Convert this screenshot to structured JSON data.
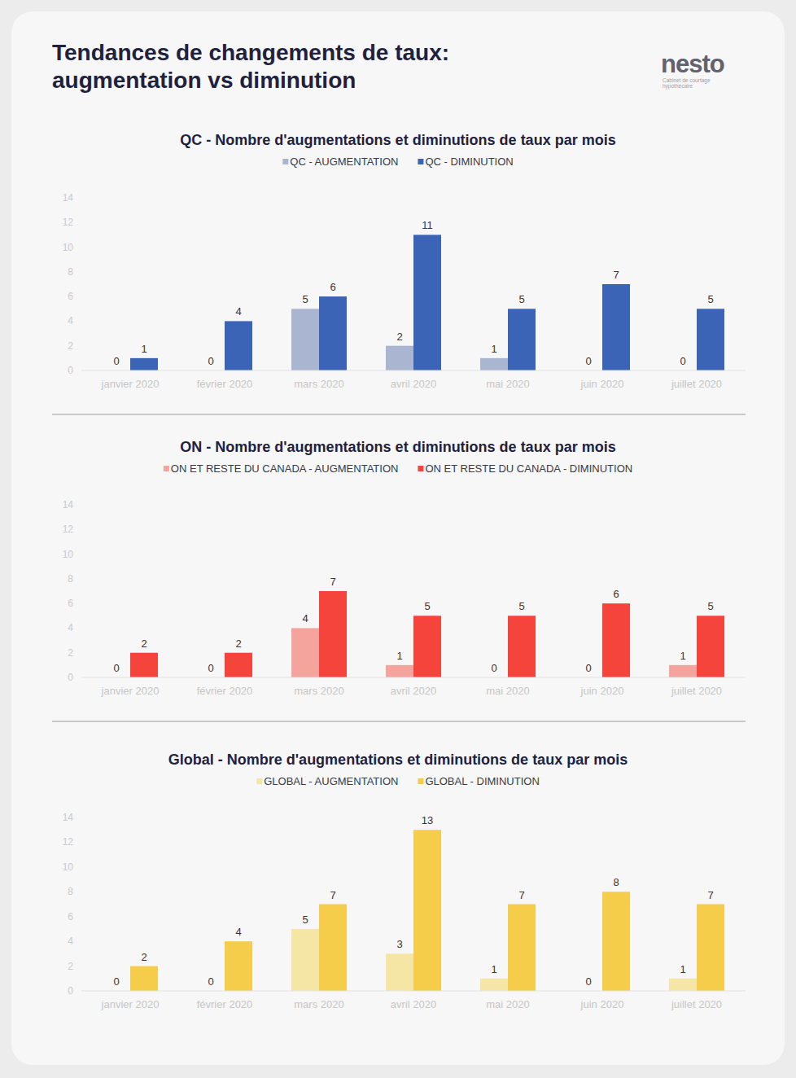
{
  "header": {
    "title": [
      "Tendances de changements de taux:",
      "augmentation vs diminution"
    ],
    "logo": "nesto",
    "logo_subtitle": [
      "Cabinet de courtage",
      "hypothécaire"
    ]
  },
  "chart_data": [
    {
      "type": "bar",
      "title": "QC - Nombre d'augmentations et diminutions de taux par mois",
      "categories": [
        "janvier 2020",
        "février 2020",
        "mars 2020",
        "avril 2020",
        "mai 2020",
        "juin 2020",
        "juillet 2020"
      ],
      "series": [
        {
          "name": "QC -  AUGMENTATION",
          "color": "#a9b5d1",
          "values": [
            0,
            0,
            5,
            2,
            1,
            0,
            0
          ]
        },
        {
          "name": "QC -  DIMINUTION",
          "color": "#3b63b6",
          "values": [
            1,
            4,
            6,
            11,
            5,
            7,
            5
          ]
        }
      ],
      "ylim": [
        0,
        14
      ],
      "yticks": [
        0,
        2,
        4,
        6,
        8,
        10,
        12,
        14
      ],
      "grid": false,
      "legend": "top",
      "data_labels": true
    },
    {
      "type": "bar",
      "title": "ON - Nombre d'augmentations et diminutions de taux par mois",
      "categories": [
        "janvier 2020",
        "février 2020",
        "mars 2020",
        "avril 2020",
        "mai 2020",
        "juin 2020",
        "juillet 2020"
      ],
      "series": [
        {
          "name": "ON ET RESTE DU CANADA -  AUGMENTATION",
          "color": "#f4a39d",
          "values": [
            0,
            0,
            4,
            1,
            0,
            0,
            1
          ]
        },
        {
          "name": "ON ET RESTE DU CANADA -  DIMINUTION",
          "color": "#f5443c",
          "values": [
            2,
            2,
            7,
            5,
            5,
            6,
            5
          ]
        }
      ],
      "ylim": [
        0,
        14
      ],
      "yticks": [
        0,
        2,
        4,
        6,
        8,
        10,
        12,
        14
      ],
      "grid": false,
      "legend": "top",
      "data_labels": true
    },
    {
      "type": "bar",
      "title": "Global - Nombre d'augmentations et diminutions de taux par mois",
      "categories": [
        "janvier 2020",
        "février 2020",
        "mars 2020",
        "avril 2020",
        "mai 2020",
        "juin 2020",
        "juillet 2020"
      ],
      "series": [
        {
          "name": "GLOBAL -  AUGMENTATION",
          "color": "#f6e6a6",
          "values": [
            0,
            0,
            5,
            3,
            1,
            0,
            1
          ]
        },
        {
          "name": "GLOBAL -  DIMINUTION",
          "color": "#f6cc4b",
          "values": [
            2,
            4,
            7,
            13,
            7,
            8,
            7
          ]
        }
      ],
      "ylim": [
        0,
        14
      ],
      "yticks": [
        0,
        2,
        4,
        6,
        8,
        10,
        12,
        14
      ],
      "grid": false,
      "legend": "top",
      "data_labels": true
    }
  ]
}
